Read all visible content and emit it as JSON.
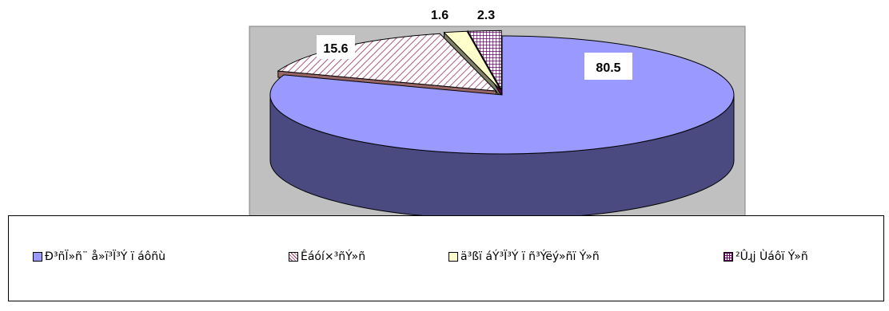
{
  "chart_data": {
    "type": "pie",
    "values": [
      80.5,
      15.6,
      1.6,
      2.3
    ],
    "labels": [
      "80.5",
      "15.6",
      "1.6",
      "2.3"
    ],
    "series": [
      {
        "name": "Ð³ñÏ»ñ¨ å»ï³Ï³Ý ï áôñù",
        "value": 80.5,
        "color": "#9999ff",
        "side": "#4a4a80",
        "pattern": "solid"
      },
      {
        "name": "Êáóí×³ñÝ»ñ",
        "value": 15.6,
        "color": "#ffffff",
        "side": "#996666",
        "pattern": "diagonal-hatch",
        "patternColor": "#993366"
      },
      {
        "name": "ä³ßï áÝ³Ï³Ý ï ñ³Ýëý»ñï Ý»ñ",
        "value": 1.6,
        "color": "#ffffcc",
        "side": "#7f7f66",
        "pattern": "solid"
      },
      {
        "name": "²Ûɻϳ Ùáôï Ý»ñ",
        "value": 2.3,
        "color": "#ffffff",
        "side": "#660066",
        "pattern": "grid",
        "patternColor": "#660066"
      }
    ],
    "style": "3d-exploded",
    "plot_background": "#c0c0c0",
    "legend_position": "bottom"
  },
  "legend": {
    "items": [
      {
        "label": "Ð³ñÏ»ñ¨ å»ï³Ï³Ý ï áôñù"
      },
      {
        "label": "Êáóí×³ñÝ»ñ"
      },
      {
        "label": "ä³ßï áÝ³Ï³Ý ï ñ³Ýëý»ñï Ý»ñ"
      },
      {
        "label": "²Ûɻϳ Ùáôï Ý»ñ"
      }
    ]
  }
}
